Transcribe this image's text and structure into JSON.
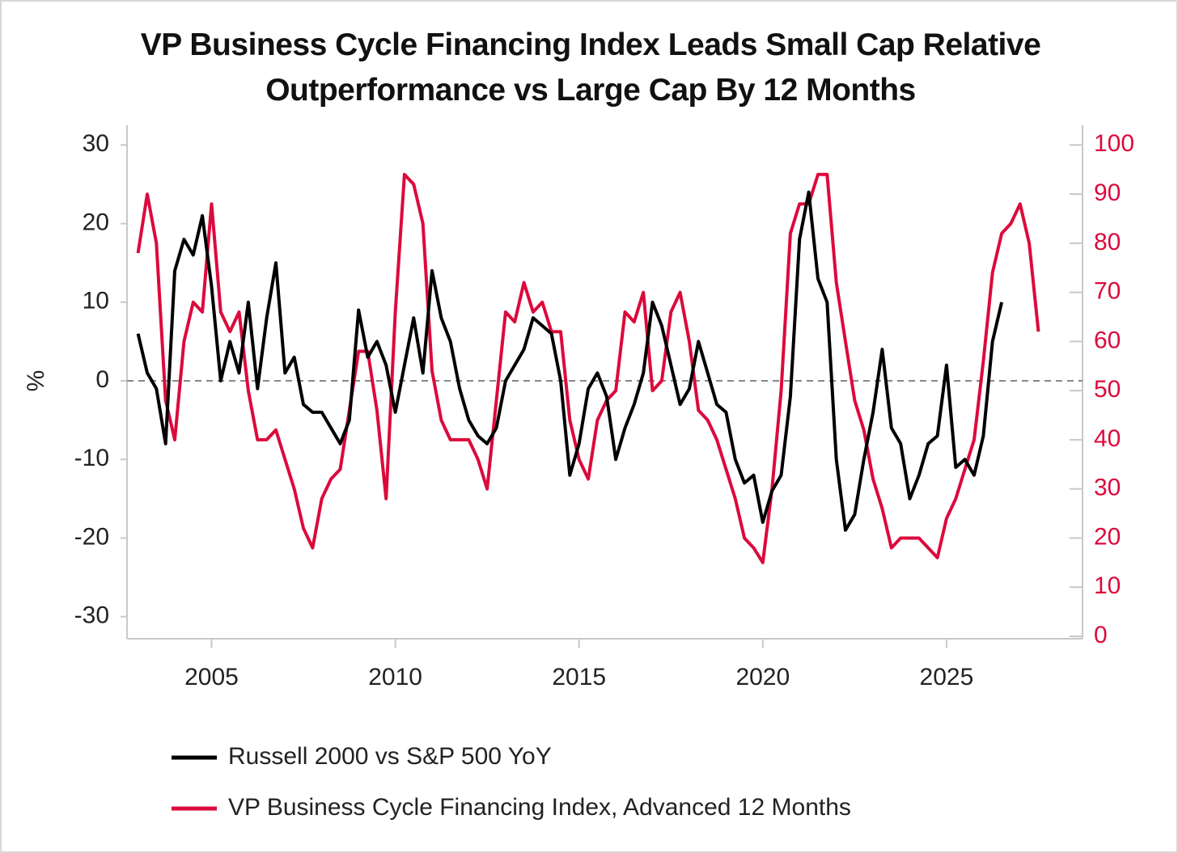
{
  "chart_data": {
    "type": "line",
    "title": "VP Business Cycle Financing Index Leads Small Cap Relative Outperformance vs Large Cap By 12 Months",
    "ylabel": "%",
    "x": [
      2003.0,
      2003.25,
      2003.5,
      2003.75,
      2004.0,
      2004.25,
      2004.5,
      2004.75,
      2005.0,
      2005.25,
      2005.5,
      2005.75,
      2006.0,
      2006.25,
      2006.5,
      2006.75,
      2007.0,
      2007.25,
      2007.5,
      2007.75,
      2008.0,
      2008.25,
      2008.5,
      2008.75,
      2009.0,
      2009.25,
      2009.5,
      2009.75,
      2010.0,
      2010.25,
      2010.5,
      2010.75,
      2011.0,
      2011.25,
      2011.5,
      2011.75,
      2012.0,
      2012.25,
      2012.5,
      2012.75,
      2013.0,
      2013.25,
      2013.5,
      2013.75,
      2014.0,
      2014.25,
      2014.5,
      2014.75,
      2015.0,
      2015.25,
      2015.5,
      2015.75,
      2016.0,
      2016.25,
      2016.5,
      2016.75,
      2017.0,
      2017.25,
      2017.5,
      2017.75,
      2018.0,
      2018.25,
      2018.5,
      2018.75,
      2019.0,
      2019.25,
      2019.5,
      2019.75,
      2020.0,
      2020.25,
      2020.5,
      2020.75,
      2021.0,
      2021.25,
      2021.5,
      2021.75,
      2022.0,
      2022.25,
      2022.5,
      2022.75,
      2023.0,
      2023.25,
      2023.5,
      2023.75,
      2024.0,
      2024.25,
      2024.5,
      2024.75,
      2025.0,
      2025.25,
      2025.5,
      2025.75,
      2026.0,
      2026.25,
      2026.5,
      2026.75,
      2027.0,
      2027.25,
      2027.5
    ],
    "series": [
      {
        "name": "Russell 2000 vs S&P 500 YoY",
        "color": "#000000",
        "values": [
          6,
          1,
          -1,
          -8,
          14,
          18,
          16,
          21,
          12,
          0,
          5,
          1,
          10,
          -1,
          8,
          15,
          1,
          3,
          -3,
          -4,
          -4,
          -6,
          -8,
          -5,
          9,
          3,
          5,
          2,
          -4,
          2,
          8,
          1,
          14,
          8,
          5,
          -1,
          -5,
          -7,
          -8,
          -6,
          0,
          2,
          4,
          8,
          7,
          6,
          0,
          -12,
          -8,
          -1,
          1,
          -2,
          -10,
          -6,
          -3,
          1,
          10,
          7,
          2,
          -3,
          -1,
          5,
          1,
          -3,
          -4,
          -10,
          -13,
          -12,
          -18,
          -14,
          -12,
          -2,
          18,
          24,
          13,
          10,
          -10,
          -19,
          -17,
          -10,
          -4,
          4,
          -6,
          -8,
          -15,
          -12,
          -8,
          -7,
          2,
          -11,
          -10,
          -12,
          -7,
          5,
          10,
          null,
          null,
          null,
          null
        ]
      },
      {
        "name": "VP Business Cycle Financing Index, Advanced 12 Months",
        "color": "#dc0a3c",
        "axis": "y2",
        "values": [
          78,
          90,
          80,
          48,
          40,
          60,
          68,
          66,
          88,
          66,
          62,
          66,
          50,
          40,
          40,
          42,
          36,
          30,
          22,
          18,
          28,
          32,
          34,
          46,
          58,
          58,
          46,
          28,
          66,
          94,
          92,
          84,
          54,
          44,
          40,
          40,
          40,
          36,
          30,
          48,
          66,
          64,
          72,
          66,
          68,
          62,
          62,
          44,
          36,
          32,
          44,
          48,
          50,
          66,
          64,
          70,
          50,
          52,
          66,
          70,
          60,
          46,
          44,
          40,
          34,
          28,
          20,
          18,
          15,
          30,
          50,
          82,
          88,
          88,
          94,
          94,
          72,
          60,
          48,
          42,
          32,
          26,
          18,
          20,
          20,
          20,
          18,
          16,
          24,
          28,
          34,
          40,
          56,
          74,
          82,
          84,
          88,
          80,
          62
        ]
      }
    ],
    "xlim": [
      2002.7,
      2028.7
    ],
    "xticks": [
      2005,
      2010,
      2015,
      2020,
      2025
    ],
    "ylim": [
      -32.5,
      32.5
    ],
    "yticks": [
      30,
      20,
      10,
      0,
      -10,
      -20,
      -30
    ],
    "y2lim": [
      0,
      104
    ],
    "y2ticks": [
      100,
      90,
      80,
      70,
      60,
      50,
      40,
      30,
      20,
      10,
      0
    ],
    "zero_line": true
  }
}
